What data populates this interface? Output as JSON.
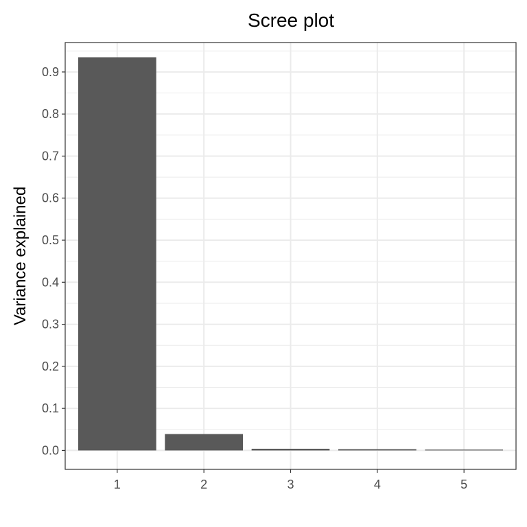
{
  "chart_data": {
    "type": "bar",
    "title": "Scree plot",
    "xlabel": "",
    "ylabel": "Variance explained",
    "categories": [
      "1",
      "2",
      "3",
      "4",
      "5"
    ],
    "values": [
      0.935,
      0.039,
      0.004,
      0.003,
      0.002
    ],
    "ylim": [
      -0.045,
      0.97
    ],
    "yticks": [
      0.0,
      0.1,
      0.2,
      0.3,
      0.4,
      0.5,
      0.6,
      0.7,
      0.8,
      0.9
    ],
    "ytick_labels": [
      "0.0",
      "0.1",
      "0.2",
      "0.3",
      "0.4",
      "0.5",
      "0.6",
      "0.7",
      "0.8",
      "0.9"
    ],
    "grid": true,
    "legend": "none",
    "colors": {
      "bar": "#595959",
      "grid": "#ebebeb",
      "panel_border": "#333333",
      "background": "#ffffff"
    }
  }
}
